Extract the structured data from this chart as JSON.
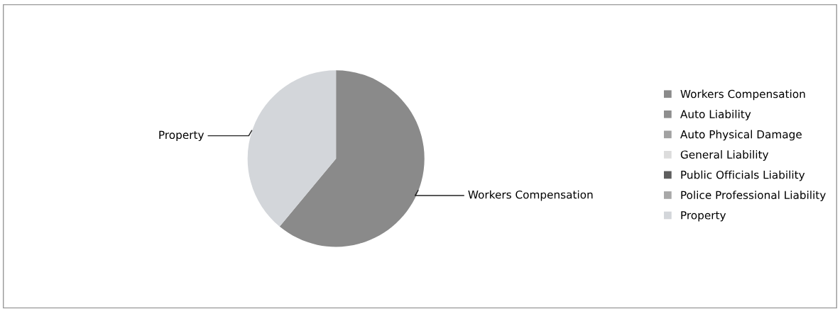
{
  "chart_data": {
    "type": "pie",
    "categories": [
      "Workers Compensation",
      "Auto Liability",
      "Auto Physical Damage",
      "General Liability",
      "Public Officials Liability",
      "Police Professional Liability",
      "Property"
    ],
    "values": [
      61,
      0,
      0,
      0,
      0,
      0,
      39
    ],
    "colors": [
      "#8a8a8a",
      "#8e8e8e",
      "#a2a2a2",
      "#dcdcdc",
      "#5e5e5e",
      "#a8a8a8",
      "#d3d6da"
    ],
    "legend": "right"
  }
}
